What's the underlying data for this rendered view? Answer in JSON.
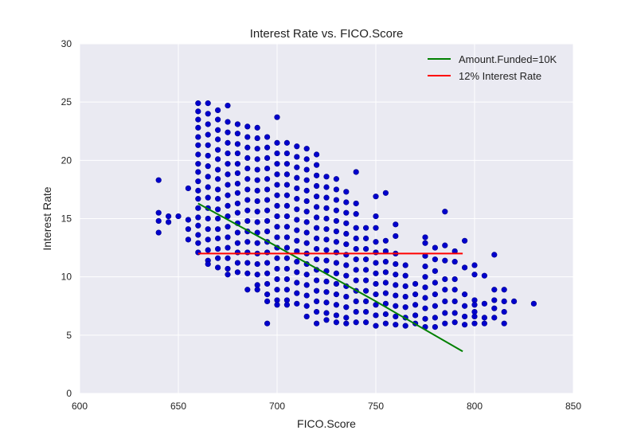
{
  "colors": {
    "plot_background": "#eaeaf2",
    "grid": "#ffffff",
    "points": "#0000cd",
    "points_edge": "#00008b",
    "line_10k": "#008000",
    "line_12pct": "#ff0000"
  },
  "chart_data": {
    "type": "scatter",
    "title": "Interest Rate vs. FICO.Score",
    "xlabel": "FICO.Score",
    "ylabel": "Interest Rate",
    "xlim": [
      600,
      850
    ],
    "ylim": [
      0,
      30
    ],
    "xticks": [
      "600",
      "650",
      "700",
      "750",
      "800",
      "850"
    ],
    "yticks": [
      "0",
      "5",
      "10",
      "15",
      "20",
      "25",
      "30"
    ],
    "grid": true,
    "legend_position": "top-right",
    "points": [
      [
        640,
        18.3
      ],
      [
        640,
        15.5
      ],
      [
        640,
        14.8
      ],
      [
        640,
        13.8
      ],
      [
        645,
        15.2
      ],
      [
        645,
        14.7
      ],
      [
        650,
        15.2
      ],
      [
        655,
        17.6
      ],
      [
        655,
        14.9
      ],
      [
        655,
        14.1
      ],
      [
        655,
        13.2
      ],
      [
        660,
        24.9
      ],
      [
        660,
        24.2
      ],
      [
        660,
        23.5
      ],
      [
        660,
        22.8
      ],
      [
        660,
        22.0
      ],
      [
        660,
        21.3
      ],
      [
        660,
        20.5
      ],
      [
        660,
        19.7
      ],
      [
        660,
        19.0
      ],
      [
        660,
        18.2
      ],
      [
        660,
        17.4
      ],
      [
        660,
        16.7
      ],
      [
        660,
        15.9
      ],
      [
        660,
        15.1
      ],
      [
        660,
        14.4
      ],
      [
        660,
        13.6
      ],
      [
        660,
        12.9
      ],
      [
        660,
        12.1
      ],
      [
        665,
        24.9
      ],
      [
        665,
        24.0
      ],
      [
        665,
        23.1
      ],
      [
        665,
        22.2
      ],
      [
        665,
        21.3
      ],
      [
        665,
        20.4
      ],
      [
        665,
        19.5
      ],
      [
        665,
        18.6
      ],
      [
        665,
        17.7
      ],
      [
        665,
        16.8
      ],
      [
        665,
        15.9
      ],
      [
        665,
        15.0
      ],
      [
        665,
        14.1
      ],
      [
        665,
        13.2
      ],
      [
        665,
        12.3
      ],
      [
        665,
        11.4
      ],
      [
        665,
        11.1
      ],
      [
        670,
        24.3
      ],
      [
        670,
        23.5
      ],
      [
        670,
        22.6
      ],
      [
        670,
        21.8
      ],
      [
        670,
        20.9
      ],
      [
        670,
        20.1
      ],
      [
        670,
        19.2
      ],
      [
        670,
        18.4
      ],
      [
        670,
        17.5
      ],
      [
        670,
        16.7
      ],
      [
        670,
        15.8
      ],
      [
        670,
        15.0
      ],
      [
        670,
        14.1
      ],
      [
        670,
        13.3
      ],
      [
        670,
        12.4
      ],
      [
        670,
        11.6
      ],
      [
        670,
        10.8
      ],
      [
        675,
        24.7
      ],
      [
        675,
        23.3
      ],
      [
        675,
        22.4
      ],
      [
        675,
        21.5
      ],
      [
        675,
        20.6
      ],
      [
        675,
        19.7
      ],
      [
        675,
        18.8
      ],
      [
        675,
        17.9
      ],
      [
        675,
        17.0
      ],
      [
        675,
        16.1
      ],
      [
        675,
        15.2
      ],
      [
        675,
        14.3
      ],
      [
        675,
        13.4
      ],
      [
        675,
        12.5
      ],
      [
        675,
        11.6
      ],
      [
        675,
        10.7
      ],
      [
        675,
        10.2
      ],
      [
        680,
        23.1
      ],
      [
        680,
        22.3
      ],
      [
        680,
        21.4
      ],
      [
        680,
        20.6
      ],
      [
        680,
        19.7
      ],
      [
        680,
        18.9
      ],
      [
        680,
        18.0
      ],
      [
        680,
        17.2
      ],
      [
        680,
        16.3
      ],
      [
        680,
        15.5
      ],
      [
        680,
        14.6
      ],
      [
        680,
        13.8
      ],
      [
        680,
        12.9
      ],
      [
        680,
        12.1
      ],
      [
        680,
        11.2
      ],
      [
        680,
        10.4
      ],
      [
        685,
        22.9
      ],
      [
        685,
        22.0
      ],
      [
        685,
        21.1
      ],
      [
        685,
        20.2
      ],
      [
        685,
        19.3
      ],
      [
        685,
        18.4
      ],
      [
        685,
        17.5
      ],
      [
        685,
        16.6
      ],
      [
        685,
        15.7
      ],
      [
        685,
        14.8
      ],
      [
        685,
        13.9
      ],
      [
        685,
        13.0
      ],
      [
        685,
        12.1
      ],
      [
        685,
        11.2
      ],
      [
        685,
        10.3
      ],
      [
        685,
        8.9
      ],
      [
        690,
        22.8
      ],
      [
        690,
        21.9
      ],
      [
        690,
        21.0
      ],
      [
        690,
        20.1
      ],
      [
        690,
        19.2
      ],
      [
        690,
        18.3
      ],
      [
        690,
        17.4
      ],
      [
        690,
        16.5
      ],
      [
        690,
        15.6
      ],
      [
        690,
        14.7
      ],
      [
        690,
        13.8
      ],
      [
        690,
        12.9
      ],
      [
        690,
        12.0
      ],
      [
        690,
        11.1
      ],
      [
        690,
        10.2
      ],
      [
        690,
        9.3
      ],
      [
        690,
        8.9
      ],
      [
        695,
        22.0
      ],
      [
        695,
        21.1
      ],
      [
        695,
        20.2
      ],
      [
        695,
        19.3
      ],
      [
        695,
        18.4
      ],
      [
        695,
        17.5
      ],
      [
        695,
        16.6
      ],
      [
        695,
        15.7
      ],
      [
        695,
        14.8
      ],
      [
        695,
        13.9
      ],
      [
        695,
        13.0
      ],
      [
        695,
        12.1
      ],
      [
        695,
        11.2
      ],
      [
        695,
        10.3
      ],
      [
        695,
        9.4
      ],
      [
        695,
        8.5
      ],
      [
        695,
        7.9
      ],
      [
        695,
        6.0
      ],
      [
        700,
        23.7
      ],
      [
        700,
        21.5
      ],
      [
        700,
        20.6
      ],
      [
        700,
        19.7
      ],
      [
        700,
        18.8
      ],
      [
        700,
        17.9
      ],
      [
        700,
        17.0
      ],
      [
        700,
        16.1
      ],
      [
        700,
        15.2
      ],
      [
        700,
        14.3
      ],
      [
        700,
        13.4
      ],
      [
        700,
        12.5
      ],
      [
        700,
        11.6
      ],
      [
        700,
        10.7
      ],
      [
        700,
        9.8
      ],
      [
        700,
        8.9
      ],
      [
        700,
        8.0
      ],
      [
        700,
        7.6
      ],
      [
        705,
        21.5
      ],
      [
        705,
        20.6
      ],
      [
        705,
        19.7
      ],
      [
        705,
        18.8
      ],
      [
        705,
        17.9
      ],
      [
        705,
        17.0
      ],
      [
        705,
        16.1
      ],
      [
        705,
        15.2
      ],
      [
        705,
        14.3
      ],
      [
        705,
        13.4
      ],
      [
        705,
        12.5
      ],
      [
        705,
        11.6
      ],
      [
        705,
        10.7
      ],
      [
        705,
        9.8
      ],
      [
        705,
        8.9
      ],
      [
        705,
        8.0
      ],
      [
        705,
        7.6
      ],
      [
        710,
        21.2
      ],
      [
        710,
        20.3
      ],
      [
        710,
        19.4
      ],
      [
        710,
        18.5
      ],
      [
        710,
        17.6
      ],
      [
        710,
        16.7
      ],
      [
        710,
        15.8
      ],
      [
        710,
        14.9
      ],
      [
        710,
        14.0
      ],
      [
        710,
        13.1
      ],
      [
        710,
        12.2
      ],
      [
        710,
        11.3
      ],
      [
        710,
        10.4
      ],
      [
        710,
        9.5
      ],
      [
        710,
        8.6
      ],
      [
        710,
        7.7
      ],
      [
        715,
        21.0
      ],
      [
        715,
        20.1
      ],
      [
        715,
        19.2
      ],
      [
        715,
        18.3
      ],
      [
        715,
        17.4
      ],
      [
        715,
        16.5
      ],
      [
        715,
        15.6
      ],
      [
        715,
        14.7
      ],
      [
        715,
        13.8
      ],
      [
        715,
        12.9
      ],
      [
        715,
        12.0
      ],
      [
        715,
        11.1
      ],
      [
        715,
        10.2
      ],
      [
        715,
        9.3
      ],
      [
        715,
        8.4
      ],
      [
        715,
        7.5
      ],
      [
        715,
        6.6
      ],
      [
        720,
        20.5
      ],
      [
        720,
        19.6
      ],
      [
        720,
        18.7
      ],
      [
        720,
        17.8
      ],
      [
        720,
        16.9
      ],
      [
        720,
        16.0
      ],
      [
        720,
        15.1
      ],
      [
        720,
        14.2
      ],
      [
        720,
        13.3
      ],
      [
        720,
        12.4
      ],
      [
        720,
        11.5
      ],
      [
        720,
        10.6
      ],
      [
        720,
        9.7
      ],
      [
        720,
        8.8
      ],
      [
        720,
        7.9
      ],
      [
        720,
        7.0
      ],
      [
        720,
        6.0
      ],
      [
        725,
        18.6
      ],
      [
        725,
        17.7
      ],
      [
        725,
        16.8
      ],
      [
        725,
        15.9
      ],
      [
        725,
        15.0
      ],
      [
        725,
        14.1
      ],
      [
        725,
        13.2
      ],
      [
        725,
        12.3
      ],
      [
        725,
        11.4
      ],
      [
        725,
        10.5
      ],
      [
        725,
        9.6
      ],
      [
        725,
        8.7
      ],
      [
        725,
        7.8
      ],
      [
        725,
        6.9
      ],
      [
        725,
        6.3
      ],
      [
        730,
        18.4
      ],
      [
        730,
        17.5
      ],
      [
        730,
        16.6
      ],
      [
        730,
        15.7
      ],
      [
        730,
        14.8
      ],
      [
        730,
        13.9
      ],
      [
        730,
        13.0
      ],
      [
        730,
        12.1
      ],
      [
        730,
        11.2
      ],
      [
        730,
        10.3
      ],
      [
        730,
        9.4
      ],
      [
        730,
        8.5
      ],
      [
        730,
        7.6
      ],
      [
        730,
        6.7
      ],
      [
        730,
        6.1
      ],
      [
        735,
        17.3
      ],
      [
        735,
        16.4
      ],
      [
        735,
        15.5
      ],
      [
        735,
        14.6
      ],
      [
        735,
        13.7
      ],
      [
        735,
        12.8
      ],
      [
        735,
        11.9
      ],
      [
        735,
        11.0
      ],
      [
        735,
        10.1
      ],
      [
        735,
        9.2
      ],
      [
        735,
        8.3
      ],
      [
        735,
        7.4
      ],
      [
        735,
        6.5
      ],
      [
        735,
        6.0
      ],
      [
        740,
        19.0
      ],
      [
        740,
        16.3
      ],
      [
        740,
        15.4
      ],
      [
        740,
        14.2
      ],
      [
        740,
        13.3
      ],
      [
        740,
        12.4
      ],
      [
        740,
        11.5
      ],
      [
        740,
        10.6
      ],
      [
        740,
        9.7
      ],
      [
        740,
        8.8
      ],
      [
        740,
        7.9
      ],
      [
        740,
        7.0
      ],
      [
        740,
        6.1
      ],
      [
        745,
        14.2
      ],
      [
        745,
        13.3
      ],
      [
        745,
        12.4
      ],
      [
        745,
        11.5
      ],
      [
        745,
        10.6
      ],
      [
        745,
        9.7
      ],
      [
        745,
        8.8
      ],
      [
        745,
        7.9
      ],
      [
        745,
        7.0
      ],
      [
        745,
        6.1
      ],
      [
        750,
        16.9
      ],
      [
        750,
        15.2
      ],
      [
        750,
        14.2
      ],
      [
        750,
        13.0
      ],
      [
        750,
        12.1
      ],
      [
        750,
        11.2
      ],
      [
        750,
        10.3
      ],
      [
        750,
        9.4
      ],
      [
        750,
        8.5
      ],
      [
        750,
        7.6
      ],
      [
        750,
        6.7
      ],
      [
        750,
        5.8
      ],
      [
        755,
        17.2
      ],
      [
        755,
        13.1
      ],
      [
        755,
        12.2
      ],
      [
        755,
        11.3
      ],
      [
        755,
        10.4
      ],
      [
        755,
        9.5
      ],
      [
        755,
        8.6
      ],
      [
        755,
        7.7
      ],
      [
        755,
        6.8
      ],
      [
        755,
        6.0
      ],
      [
        760,
        14.5
      ],
      [
        760,
        13.5
      ],
      [
        760,
        12.0
      ],
      [
        760,
        11.1
      ],
      [
        760,
        10.2
      ],
      [
        760,
        9.3
      ],
      [
        760,
        8.4
      ],
      [
        760,
        7.5
      ],
      [
        760,
        6.6
      ],
      [
        760,
        5.9
      ],
      [
        765,
        11.0
      ],
      [
        765,
        10.1
      ],
      [
        765,
        9.2
      ],
      [
        765,
        8.3
      ],
      [
        765,
        7.4
      ],
      [
        765,
        6.5
      ],
      [
        765,
        5.8
      ],
      [
        770,
        9.4
      ],
      [
        770,
        8.5
      ],
      [
        770,
        7.6
      ],
      [
        770,
        6.7
      ],
      [
        770,
        6.0
      ],
      [
        775,
        13.4
      ],
      [
        775,
        12.9
      ],
      [
        775,
        11.8
      ],
      [
        775,
        10.9
      ],
      [
        775,
        10.0
      ],
      [
        775,
        9.1
      ],
      [
        775,
        8.2
      ],
      [
        775,
        7.3
      ],
      [
        775,
        6.4
      ],
      [
        775,
        5.7
      ],
      [
        780,
        12.5
      ],
      [
        780,
        11.5
      ],
      [
        780,
        10.5
      ],
      [
        780,
        9.5
      ],
      [
        780,
        8.5
      ],
      [
        780,
        7.5
      ],
      [
        780,
        6.5
      ],
      [
        780,
        5.7
      ],
      [
        785,
        15.6
      ],
      [
        785,
        12.7
      ],
      [
        785,
        11.4
      ],
      [
        785,
        9.8
      ],
      [
        785,
        8.9
      ],
      [
        785,
        7.9
      ],
      [
        785,
        6.9
      ],
      [
        785,
        6.0
      ],
      [
        790,
        12.2
      ],
      [
        790,
        11.3
      ],
      [
        790,
        9.8
      ],
      [
        790,
        8.9
      ],
      [
        790,
        7.9
      ],
      [
        790,
        6.9
      ],
      [
        790,
        6.1
      ],
      [
        795,
        13.1
      ],
      [
        795,
        10.8
      ],
      [
        795,
        8.5
      ],
      [
        795,
        7.5
      ],
      [
        795,
        6.6
      ],
      [
        795,
        5.9
      ],
      [
        800,
        11.0
      ],
      [
        800,
        10.2
      ],
      [
        800,
        8.0
      ],
      [
        800,
        7.6
      ],
      [
        800,
        7.0
      ],
      [
        800,
        6.6
      ],
      [
        800,
        6.0
      ],
      [
        805,
        10.1
      ],
      [
        805,
        7.7
      ],
      [
        805,
        6.5
      ],
      [
        805,
        6.0
      ],
      [
        810,
        11.9
      ],
      [
        810,
        8.9
      ],
      [
        810,
        8.0
      ],
      [
        810,
        7.3
      ],
      [
        810,
        6.5
      ],
      [
        815,
        8.9
      ],
      [
        815,
        7.9
      ],
      [
        815,
        7.0
      ],
      [
        815,
        6.0
      ],
      [
        820,
        7.9
      ],
      [
        830,
        7.7
      ]
    ],
    "series": [
      {
        "name": "Amount.Funded=10K",
        "color": "#008000",
        "x": [
          660,
          700,
          750,
          794
        ],
        "y": [
          16.3,
          12.6,
          7.9,
          3.6
        ]
      },
      {
        "name": "12% Interest Rate",
        "color": "#ff0000",
        "x": [
          660,
          794
        ],
        "y": [
          12.0,
          12.0
        ]
      }
    ]
  }
}
